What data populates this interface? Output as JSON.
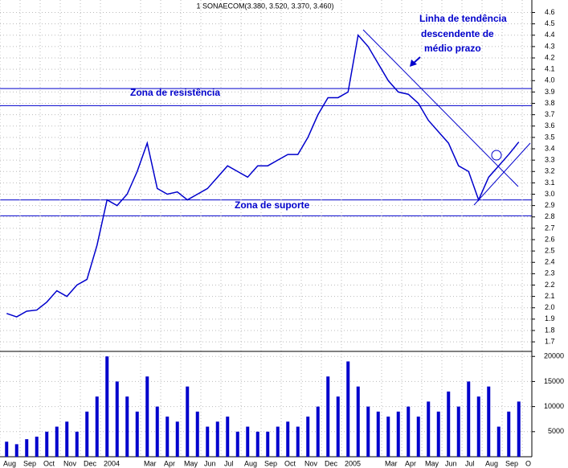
{
  "chart_data": {
    "type": "line",
    "title": "1 SONAECOM(3.380, 3.520, 3.370, 3.460)",
    "annotations": [
      "Zona de resistência",
      "Zona de suporte",
      "Linha de tendência",
      "descendente de",
      "médio prazo"
    ],
    "levels": [
      3.93,
      3.78,
      2.95,
      2.81
    ],
    "categories": [
      "Aug",
      null,
      "Sep",
      null,
      "Oct",
      null,
      "Nov",
      null,
      "Dec",
      null,
      "2004",
      null,
      null,
      null,
      "Mar",
      null,
      "Apr",
      null,
      "May",
      null,
      "Jun",
      null,
      "Jul",
      null,
      "Aug",
      null,
      "Sep",
      null,
      "Oct",
      null,
      "Nov",
      null,
      "Dec",
      null,
      "2005",
      null,
      null,
      null,
      "Mar",
      null,
      "Apr",
      null,
      "May",
      null,
      "Jun",
      null,
      "Jul",
      null,
      "Aug",
      null,
      "Sep",
      null,
      "O"
    ],
    "series": [
      {
        "color": "#0000cc",
        "values": [
          1.95,
          1.92,
          1.97,
          1.98,
          2.05,
          2.15,
          2.1,
          2.2,
          2.25,
          2.55,
          2.95,
          2.9,
          3.0,
          3.2,
          3.45,
          3.05,
          3.0,
          3.02,
          2.95,
          3.0,
          3.05,
          3.15,
          3.25,
          3.2,
          3.15,
          3.25,
          3.25,
          3.3,
          3.35,
          3.35,
          3.5,
          3.7,
          3.85,
          3.85,
          3.9,
          4.4,
          4.3,
          4.15,
          4.0,
          3.9,
          3.88,
          3.8,
          3.65,
          3.55,
          3.45,
          3.25,
          3.2,
          2.95,
          3.15,
          3.25,
          3.35,
          3.46,
          null
        ]
      },
      {
        "type": "bar",
        "axis": "y2",
        "color": "#0000cc",
        "values": [
          3000,
          2500,
          3500,
          4000,
          5000,
          6000,
          7000,
          5000,
          9000,
          12000,
          20000,
          15000,
          12000,
          9000,
          16000,
          10000,
          8000,
          7000,
          14000,
          9000,
          6000,
          7000,
          8000,
          5000,
          6000,
          5000,
          5000,
          6000,
          7000,
          6000,
          8000,
          10000,
          16000,
          12000,
          19000,
          14000,
          10000,
          9000,
          8000,
          9000,
          10000,
          8000,
          11000,
          9000,
          13000,
          10000,
          15000,
          12000,
          14000,
          6000,
          9000,
          11000,
          null
        ]
      }
    ],
    "ylim": [
      1.63,
      4.71
    ],
    "yticks": [
      {
        "value": 1.7,
        "label": "1.7"
      },
      1.8,
      1.9,
      {
        "value": 2,
        "label": "2.0"
      },
      2.1,
      2.2,
      2.3,
      2.4,
      2.5,
      2.6,
      2.7,
      2.8,
      2.9,
      {
        "value": 3,
        "label": "3.0"
      },
      3.1,
      3.2,
      3.3,
      3.4,
      3.5,
      3.6,
      3.7,
      3.8,
      3.9,
      {
        "value": 4,
        "label": "4.0"
      },
      4.1,
      4.2,
      4.3,
      4.4,
      4.5,
      4.6
    ],
    "y2lim": [
      0,
      21000
    ],
    "y2ticks": [
      5000,
      10000,
      15000,
      20000
    ],
    "grid": true
  }
}
